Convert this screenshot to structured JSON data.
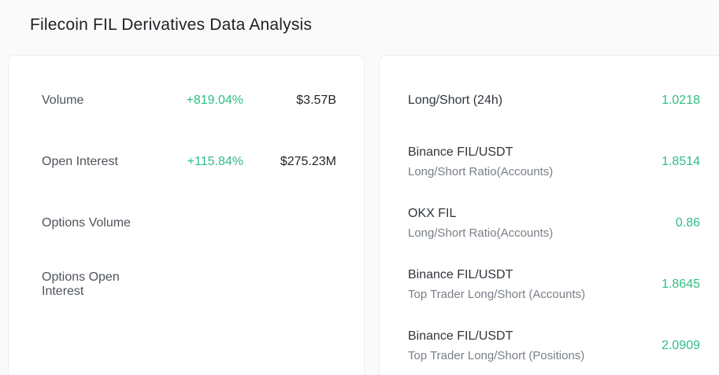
{
  "page": {
    "title": "Filecoin FIL Derivatives Data Analysis"
  },
  "colors": {
    "accent_teal": "#2ebd85",
    "background": "#fafafa",
    "card_background": "#ffffff",
    "card_border": "#eeeeee",
    "text_primary": "#24272c",
    "text_secondary": "#4e545b",
    "text_muted": "#797f88"
  },
  "stats_card": {
    "rows": [
      {
        "label": "Volume",
        "change": "+819.04%",
        "value": "$3.57B"
      },
      {
        "label": "Open Interest",
        "change": "+115.84%",
        "value": "$275.23M"
      },
      {
        "label": "Options Volume",
        "change": "",
        "value": ""
      },
      {
        "label": "Options Open Interest",
        "change": "",
        "value": ""
      }
    ]
  },
  "ratio_card": {
    "rows": [
      {
        "title": "Long/Short (24h)",
        "subtitle": "",
        "value": "1.0218"
      },
      {
        "title": "Binance FIL/USDT",
        "subtitle": "Long/Short Ratio(Accounts)",
        "value": "1.8514"
      },
      {
        "title": "OKX FIL",
        "subtitle": "Long/Short Ratio(Accounts)",
        "value": "0.86"
      },
      {
        "title": "Binance FIL/USDT",
        "subtitle": "Top Trader Long/Short (Accounts)",
        "value": "1.8645"
      },
      {
        "title": "Binance FIL/USDT",
        "subtitle": "Top Trader Long/Short (Positions)",
        "value": "2.0909"
      }
    ]
  }
}
